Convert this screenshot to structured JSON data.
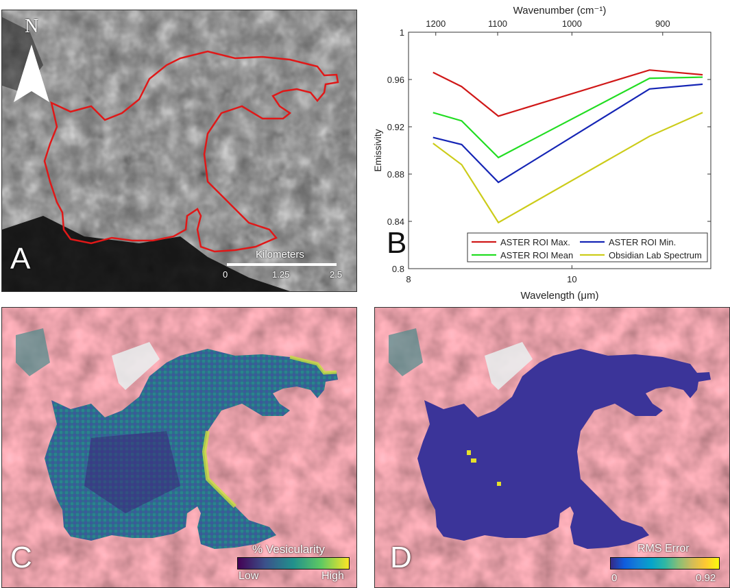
{
  "panels": {
    "a": {
      "letter": "A",
      "north_label": "N",
      "scale_title": "Kilometers",
      "scale_ticks": [
        "0",
        "1.25",
        "2.5"
      ]
    },
    "b": {
      "letter": "B"
    },
    "c": {
      "letter": "C",
      "colorbar_title": "% Vesicularity",
      "colorbar_min": "Low",
      "colorbar_max": "High"
    },
    "d": {
      "letter": "D",
      "colorbar_title": "RMS Error",
      "colorbar_min": "0",
      "colorbar_max": "0.92"
    }
  },
  "colors": {
    "outline": "#e01818",
    "aster_max": "#d01818",
    "aster_mean": "#22dd22",
    "aster_min": "#1525b5",
    "obsidian": "#cccc1a"
  },
  "chart_data": {
    "type": "line",
    "xlabel": "Wavelength (μm)",
    "top_xlabel": "Wavenumber (cm⁻¹)",
    "ylabel": "Emissivity",
    "xlim": [
      8,
      11.7
    ],
    "ylim": [
      0.8,
      1.0
    ],
    "x_ticks": [
      8,
      10
    ],
    "y_ticks": [
      0.8,
      0.84,
      0.88,
      0.92,
      0.96,
      1
    ],
    "y_tick_labels": [
      "0.8",
      "0.84",
      "0.88",
      "0.92",
      "0.96",
      "1"
    ],
    "top_ticks": [
      1200,
      1100,
      1000,
      900
    ],
    "x": [
      8.3,
      8.65,
      9.1,
      10.95,
      11.6
    ],
    "series": [
      {
        "name": "ASTER ROI Max.",
        "color": "#d01818",
        "values": [
          0.966,
          0.954,
          0.929,
          0.968,
          0.964
        ]
      },
      {
        "name": "ASTER ROI Min.",
        "color": "#1525b5",
        "values": [
          0.911,
          0.905,
          0.873,
          0.952,
          0.956
        ]
      },
      {
        "name": "ASTER ROI Mean",
        "color": "#22dd22",
        "values": [
          0.932,
          0.925,
          0.894,
          0.961,
          0.962
        ]
      },
      {
        "name": "Obsidian Lab Spectrum",
        "color": "#cccc1a",
        "values": [
          0.906,
          0.888,
          0.839,
          0.912,
          0.932
        ]
      }
    ],
    "legend_position": "bottom-right",
    "grid": false
  }
}
